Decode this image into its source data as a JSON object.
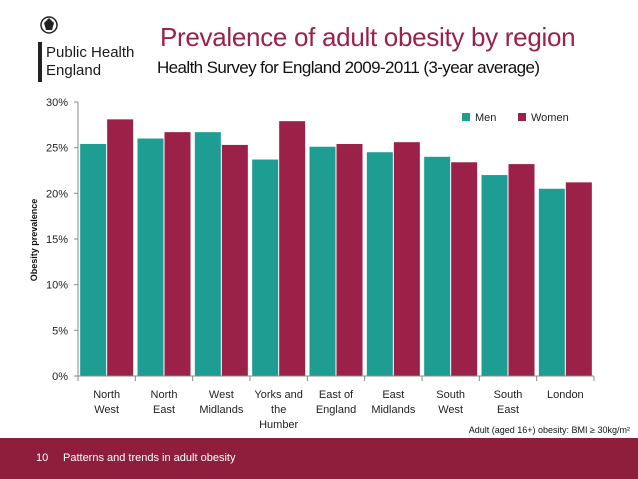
{
  "branding": {
    "org_line1": "Public Health",
    "org_line2": "England",
    "crest_icon": "royal-crest-icon"
  },
  "header": {
    "title": "Prevalence of adult obesity by region",
    "subtitle": "Health Survey for England 2009-2011 (3-year average)"
  },
  "chart_data": {
    "type": "bar",
    "title": "Prevalence of adult obesity by region",
    "xlabel": "",
    "ylabel": "Obesity prevalence",
    "categories": [
      [
        "North",
        "West"
      ],
      [
        "North",
        "East"
      ],
      [
        "West",
        "Midlands"
      ],
      [
        "Yorks and",
        "the",
        "Humber"
      ],
      [
        "East of",
        "England"
      ],
      [
        "East",
        "Midlands"
      ],
      [
        "South",
        "West"
      ],
      [
        "South",
        "East"
      ],
      [
        "London"
      ]
    ],
    "series": [
      {
        "name": "Men",
        "color": "#1e9e93",
        "values": [
          25.4,
          26.0,
          26.7,
          23.7,
          25.1,
          24.5,
          24.0,
          22.0,
          20.5
        ]
      },
      {
        "name": "Women",
        "color": "#9b2149",
        "values": [
          28.1,
          26.7,
          25.3,
          27.9,
          25.4,
          25.6,
          23.4,
          23.2,
          21.2
        ]
      }
    ],
    "ylim": [
      0,
      30
    ],
    "yticks": [
      0,
      5,
      10,
      15,
      20,
      25,
      30
    ],
    "ytick_labels": [
      "0%",
      "5%",
      "10%",
      "15%",
      "20%",
      "25%",
      "30%"
    ],
    "legend": "top-right",
    "note": "Adult (aged 16+) obesity: BMI ≥ 30kg/m²"
  },
  "footer": {
    "page_number": "10",
    "text": "Patterns and trends in adult obesity",
    "color": "#8f1e3d"
  }
}
